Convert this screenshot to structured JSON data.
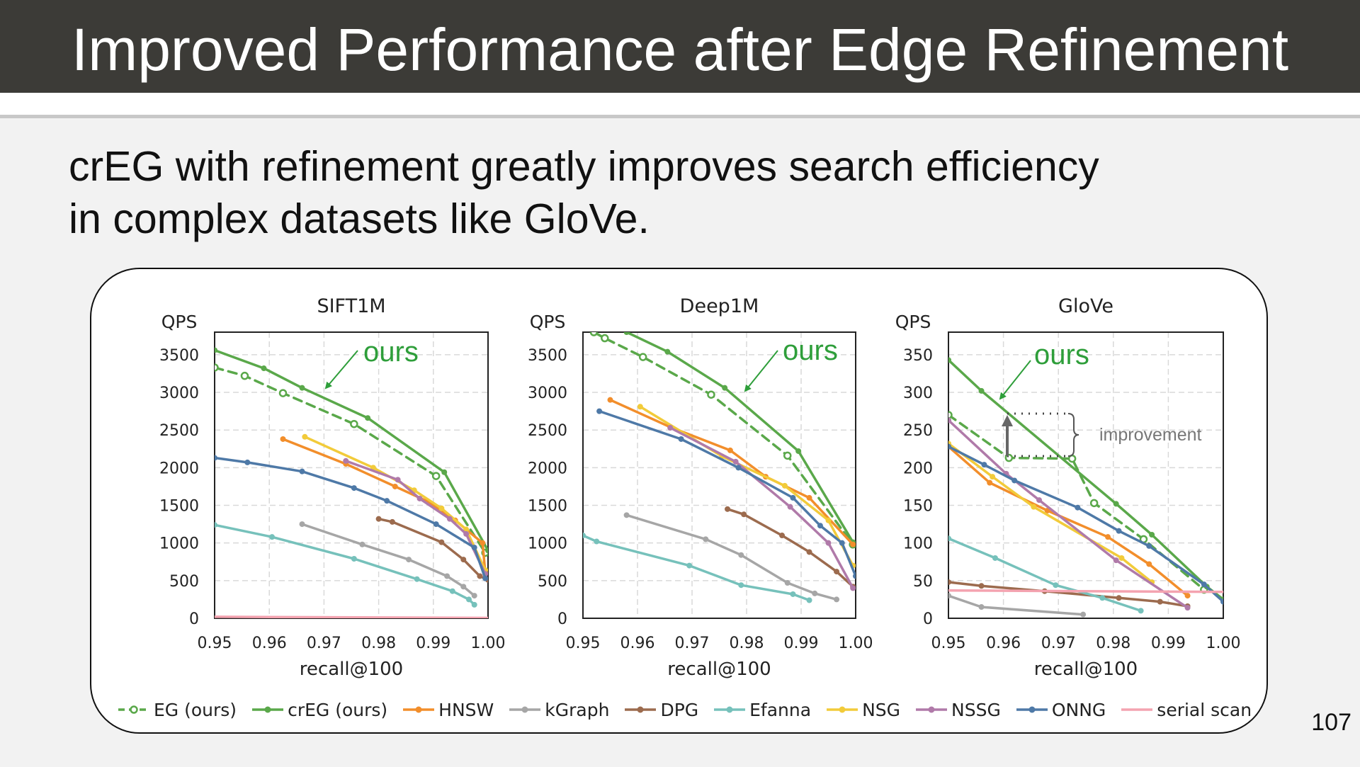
{
  "slide": {
    "title": "Improved Performance after Edge Refinement",
    "subtitle_lines": [
      "crEG with refinement greatly improves search efficiency",
      "in complex datasets like GloVe."
    ],
    "page_number": "107",
    "ours_label": "ours",
    "improvement_label": "improvement"
  },
  "colors": {
    "EG (ours)": "#5aa84a",
    "crEG (ours)": "#5aa84a",
    "HNSW": "#f28e2b",
    "kGraph": "#a6a6a6",
    "DPG": "#9c6b4e",
    "Efanna": "#76c1bb",
    "NSG": "#f2cb3a",
    "NSSG": "#b07aa9",
    "ONNG": "#4e79a7",
    "serial scan": "#f4a3b0",
    "annotation": "#2e9e3a"
  },
  "legend": [
    "EG (ours)",
    "crEG (ours)",
    "HNSW",
    "kGraph",
    "DPG",
    "Efanna",
    "NSG",
    "NSSG",
    "ONNG",
    "serial scan"
  ],
  "chart_data": [
    {
      "type": "line",
      "title": "SIFT1M",
      "xlabel": "recall@100",
      "ylabel": "QPS",
      "xlim": [
        0.95,
        1.0
      ],
      "ylim": [
        0,
        3800
      ],
      "xticks": [
        "0.95",
        "0.96",
        "0.97",
        "0.98",
        "0.99",
        "1.00"
      ],
      "yticks": [
        "0",
        "500",
        "1000",
        "1500",
        "2000",
        "2500",
        "3000",
        "3500"
      ],
      "ytick_values": [
        0,
        500,
        1000,
        1500,
        2000,
        2500,
        3000,
        3500
      ],
      "series": [
        {
          "name": "EG (ours)",
          "dashed": true,
          "points": [
            [
              0.95,
              3330
            ],
            [
              0.9555,
              3220
            ],
            [
              0.9625,
              2990
            ],
            [
              0.9755,
              2580
            ],
            [
              0.9905,
              1890
            ],
            [
              0.9995,
              870
            ]
          ]
        },
        {
          "name": "crEG (ours)",
          "points": [
            [
              0.95,
              3560
            ],
            [
              0.959,
              3320
            ],
            [
              0.966,
              3060
            ],
            [
              0.978,
              2660
            ],
            [
              0.992,
              1940
            ],
            [
              1.0,
              900
            ]
          ]
        },
        {
          "name": "HNSW",
          "points": [
            [
              0.9625,
              2380
            ],
            [
              0.974,
              2050
            ],
            [
              0.983,
              1750
            ],
            [
              0.989,
              1550
            ],
            [
              0.994,
              1300
            ],
            [
              0.999,
              1000
            ],
            [
              0.9995,
              600
            ]
          ]
        },
        {
          "name": "kGraph",
          "points": [
            [
              0.966,
              1250
            ],
            [
              0.977,
              980
            ],
            [
              0.9855,
              780
            ],
            [
              0.9925,
              560
            ],
            [
              0.9955,
              420
            ],
            [
              0.9975,
              300
            ]
          ]
        },
        {
          "name": "DPG",
          "points": [
            [
              0.98,
              1320
            ],
            [
              0.9825,
              1280
            ],
            [
              0.9915,
              1010
            ],
            [
              0.9955,
              780
            ],
            [
              0.9985,
              560
            ],
            [
              1.0,
              510
            ]
          ]
        },
        {
          "name": "Efanna",
          "points": [
            [
              0.95,
              1240
            ],
            [
              0.9605,
              1080
            ],
            [
              0.9755,
              790
            ],
            [
              0.987,
              520
            ],
            [
              0.9935,
              360
            ],
            [
              0.9965,
              250
            ],
            [
              0.9975,
              180
            ]
          ]
        },
        {
          "name": "NSG",
          "points": [
            [
              0.9665,
              2410
            ],
            [
              0.979,
              2000
            ],
            [
              0.9865,
              1700
            ],
            [
              0.9915,
              1460
            ],
            [
              0.996,
              1180
            ],
            [
              0.9995,
              640
            ]
          ]
        },
        {
          "name": "NSSG",
          "points": [
            [
              0.974,
              2090
            ],
            [
              0.9835,
              1840
            ],
            [
              0.9875,
              1590
            ],
            [
              0.993,
              1320
            ],
            [
              0.996,
              1120
            ],
            [
              0.9995,
              590
            ]
          ]
        },
        {
          "name": "ONNG",
          "points": [
            [
              0.95,
              2130
            ],
            [
              0.956,
              2070
            ],
            [
              0.966,
              1950
            ],
            [
              0.9755,
              1730
            ],
            [
              0.9815,
              1560
            ],
            [
              0.9905,
              1250
            ],
            [
              0.9975,
              940
            ],
            [
              0.9995,
              530
            ]
          ]
        },
        {
          "name": "serial scan",
          "points": [
            [
              0.95,
              20
            ],
            [
              1.0,
              5
            ]
          ]
        }
      ]
    },
    {
      "type": "line",
      "title": "Deep1M",
      "xlabel": "recall@100",
      "ylabel": "QPS",
      "xlim": [
        0.95,
        1.0
      ],
      "ylim": [
        0,
        3800
      ],
      "xticks": [
        "0.95",
        "0.96",
        "0.97",
        "0.98",
        "0.99",
        "1.00"
      ],
      "yticks": [
        "0",
        "500",
        "1000",
        "1500",
        "2000",
        "2500",
        "3000",
        "3500"
      ],
      "ytick_values": [
        0,
        500,
        1000,
        1500,
        2000,
        2500,
        3000,
        3500
      ],
      "series": [
        {
          "name": "EG (ours)",
          "dashed": true,
          "points": [
            [
              0.952,
              3800
            ],
            [
              0.954,
              3720
            ],
            [
              0.961,
              3470
            ],
            [
              0.9735,
              2970
            ],
            [
              0.9875,
              2160
            ],
            [
              0.9995,
              980
            ]
          ]
        },
        {
          "name": "crEG (ours)",
          "points": [
            [
              0.958,
              3800
            ],
            [
              0.9655,
              3540
            ],
            [
              0.976,
              3060
            ],
            [
              0.9895,
              2220
            ],
            [
              0.9995,
              1010
            ]
          ]
        },
        {
          "name": "HNSW",
          "points": [
            [
              0.955,
              2900
            ],
            [
              0.966,
              2540
            ],
            [
              0.977,
              2230
            ],
            [
              0.9835,
              1880
            ],
            [
              0.9915,
              1600
            ],
            [
              0.9995,
              980
            ]
          ]
        },
        {
          "name": "kGraph",
          "points": [
            [
              0.958,
              1370
            ],
            [
              0.9725,
              1050
            ],
            [
              0.979,
              840
            ],
            [
              0.9875,
              470
            ],
            [
              0.9925,
              330
            ],
            [
              0.9965,
              250
            ]
          ]
        },
        {
          "name": "DPG",
          "points": [
            [
              0.9765,
              1450
            ],
            [
              0.9795,
              1380
            ],
            [
              0.9865,
              1100
            ],
            [
              0.9915,
              880
            ],
            [
              0.9965,
              620
            ],
            [
              0.9995,
              420
            ]
          ]
        },
        {
          "name": "Efanna",
          "points": [
            [
              0.95,
              1100
            ],
            [
              0.9525,
              1020
            ],
            [
              0.9695,
              700
            ],
            [
              0.979,
              440
            ],
            [
              0.9885,
              320
            ],
            [
              0.9915,
              240
            ]
          ]
        },
        {
          "name": "NSG",
          "points": [
            [
              0.9605,
              2810
            ],
            [
              0.9755,
              2150
            ],
            [
              0.987,
              1760
            ],
            [
              0.995,
              1300
            ],
            [
              0.9995,
              700
            ]
          ]
        },
        {
          "name": "NSSG",
          "points": [
            [
              0.966,
              2530
            ],
            [
              0.978,
              2080
            ],
            [
              0.988,
              1480
            ],
            [
              0.995,
              1000
            ],
            [
              0.9995,
              400
            ]
          ]
        },
        {
          "name": "ONNG",
          "points": [
            [
              0.953,
              2750
            ],
            [
              0.968,
              2380
            ],
            [
              0.9785,
              2000
            ],
            [
              0.9885,
              1600
            ],
            [
              0.9935,
              1230
            ],
            [
              0.9975,
              1000
            ],
            [
              1.0,
              560
            ]
          ]
        },
        {
          "name": "serial scan",
          "points": [
            [
              0.95,
              -40
            ],
            [
              1.0,
              -40
            ]
          ]
        }
      ]
    },
    {
      "type": "line",
      "title": "GloVe",
      "xlabel": "recall@100",
      "ylabel": "QPS",
      "xlim": [
        0.95,
        1.0
      ],
      "ylim": [
        0,
        380
      ],
      "xticks": [
        "0.95",
        "0.96",
        "0.97",
        "0.98",
        "0.99",
        "1.00"
      ],
      "yticks": [
        "0",
        "50",
        "100",
        "150",
        "200",
        "250",
        "300",
        "350"
      ],
      "ytick_values": [
        0,
        50,
        100,
        150,
        200,
        250,
        300,
        350
      ],
      "series": [
        {
          "name": "EG (ours)",
          "dashed": true,
          "points": [
            [
              0.95,
              270
            ],
            [
              0.961,
              213
            ],
            [
              0.9725,
              212
            ],
            [
              0.9765,
              153
            ],
            [
              0.9855,
              105
            ],
            [
              0.9965,
              38
            ]
          ]
        },
        {
          "name": "crEG (ours)",
          "points": [
            [
              0.95,
              343
            ],
            [
              0.956,
              302
            ],
            [
              0.9805,
              152
            ],
            [
              0.987,
              111
            ],
            [
              0.997,
              42
            ],
            [
              1.0,
              25
            ]
          ]
        },
        {
          "name": "HNSW",
          "points": [
            [
              0.95,
              228
            ],
            [
              0.9575,
              180
            ],
            [
              0.968,
              143
            ],
            [
              0.979,
              108
            ],
            [
              0.9865,
              72
            ],
            [
              0.9935,
              30
            ]
          ]
        },
        {
          "name": "kGraph",
          "points": [
            [
              0.95,
              30
            ],
            [
              0.956,
              15
            ],
            [
              0.9745,
              5
            ]
          ]
        },
        {
          "name": "DPG",
          "points": [
            [
              0.95,
              48
            ],
            [
              0.956,
              43
            ],
            [
              0.9675,
              36
            ],
            [
              0.981,
              27
            ],
            [
              0.9885,
              22
            ],
            [
              0.9935,
              16
            ]
          ]
        },
        {
          "name": "Efanna",
          "points": [
            [
              0.95,
              106
            ],
            [
              0.9585,
              80
            ],
            [
              0.9695,
              44
            ],
            [
              0.978,
              27
            ],
            [
              0.985,
              10
            ]
          ]
        },
        {
          "name": "NSG",
          "points": [
            [
              0.95,
              232
            ],
            [
              0.958,
              188
            ],
            [
              0.9655,
              148
            ],
            [
              0.9815,
              80
            ],
            [
              0.987,
              48
            ]
          ]
        },
        {
          "name": "NSSG",
          "points": [
            [
              0.95,
              263
            ],
            [
              0.9605,
              192
            ],
            [
              0.9665,
              157
            ],
            [
              0.9805,
              77
            ],
            [
              0.9935,
              14
            ]
          ]
        },
        {
          "name": "ONNG",
          "points": [
            [
              0.95,
              228
            ],
            [
              0.9565,
              204
            ],
            [
              0.962,
              183
            ],
            [
              0.9735,
              147
            ],
            [
              0.981,
              116
            ],
            [
              0.9865,
              96
            ],
            [
              0.9965,
              45
            ],
            [
              1.0,
              22
            ]
          ]
        },
        {
          "name": "serial scan",
          "points": [
            [
              0.95,
              37
            ],
            [
              1.0,
              35
            ]
          ]
        }
      ]
    }
  ]
}
